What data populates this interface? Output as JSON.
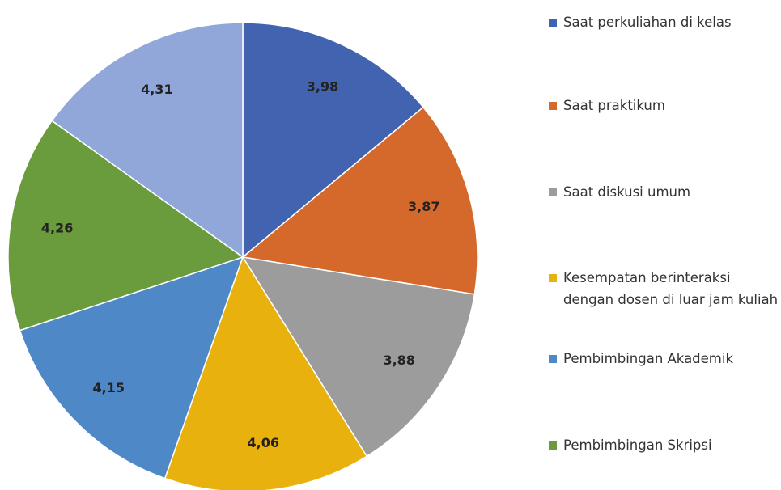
{
  "chart_data": {
    "type": "pie",
    "categories": [
      "Saat perkuliahan di kelas",
      "Saat praktikum",
      "Saat diskusi umum",
      "Kesempatan berinteraksi dengan dosen di luar jam kuliah",
      "Pembimbingan Akademik",
      "Pembimbingan Skripsi",
      null
    ],
    "values": [
      3.98,
      3.87,
      3.88,
      4.06,
      4.15,
      4.26,
      4.31
    ],
    "value_labels": [
      "3,98",
      "3,87",
      "3,88",
      "4,06",
      "4,15",
      "4,26",
      "4,31"
    ],
    "colors": [
      "#4264b0",
      "#d4692b",
      "#9c9c9c",
      "#e8b10e",
      "#4f88c6",
      "#6a9c3d",
      "#91a7d9"
    ]
  }
}
